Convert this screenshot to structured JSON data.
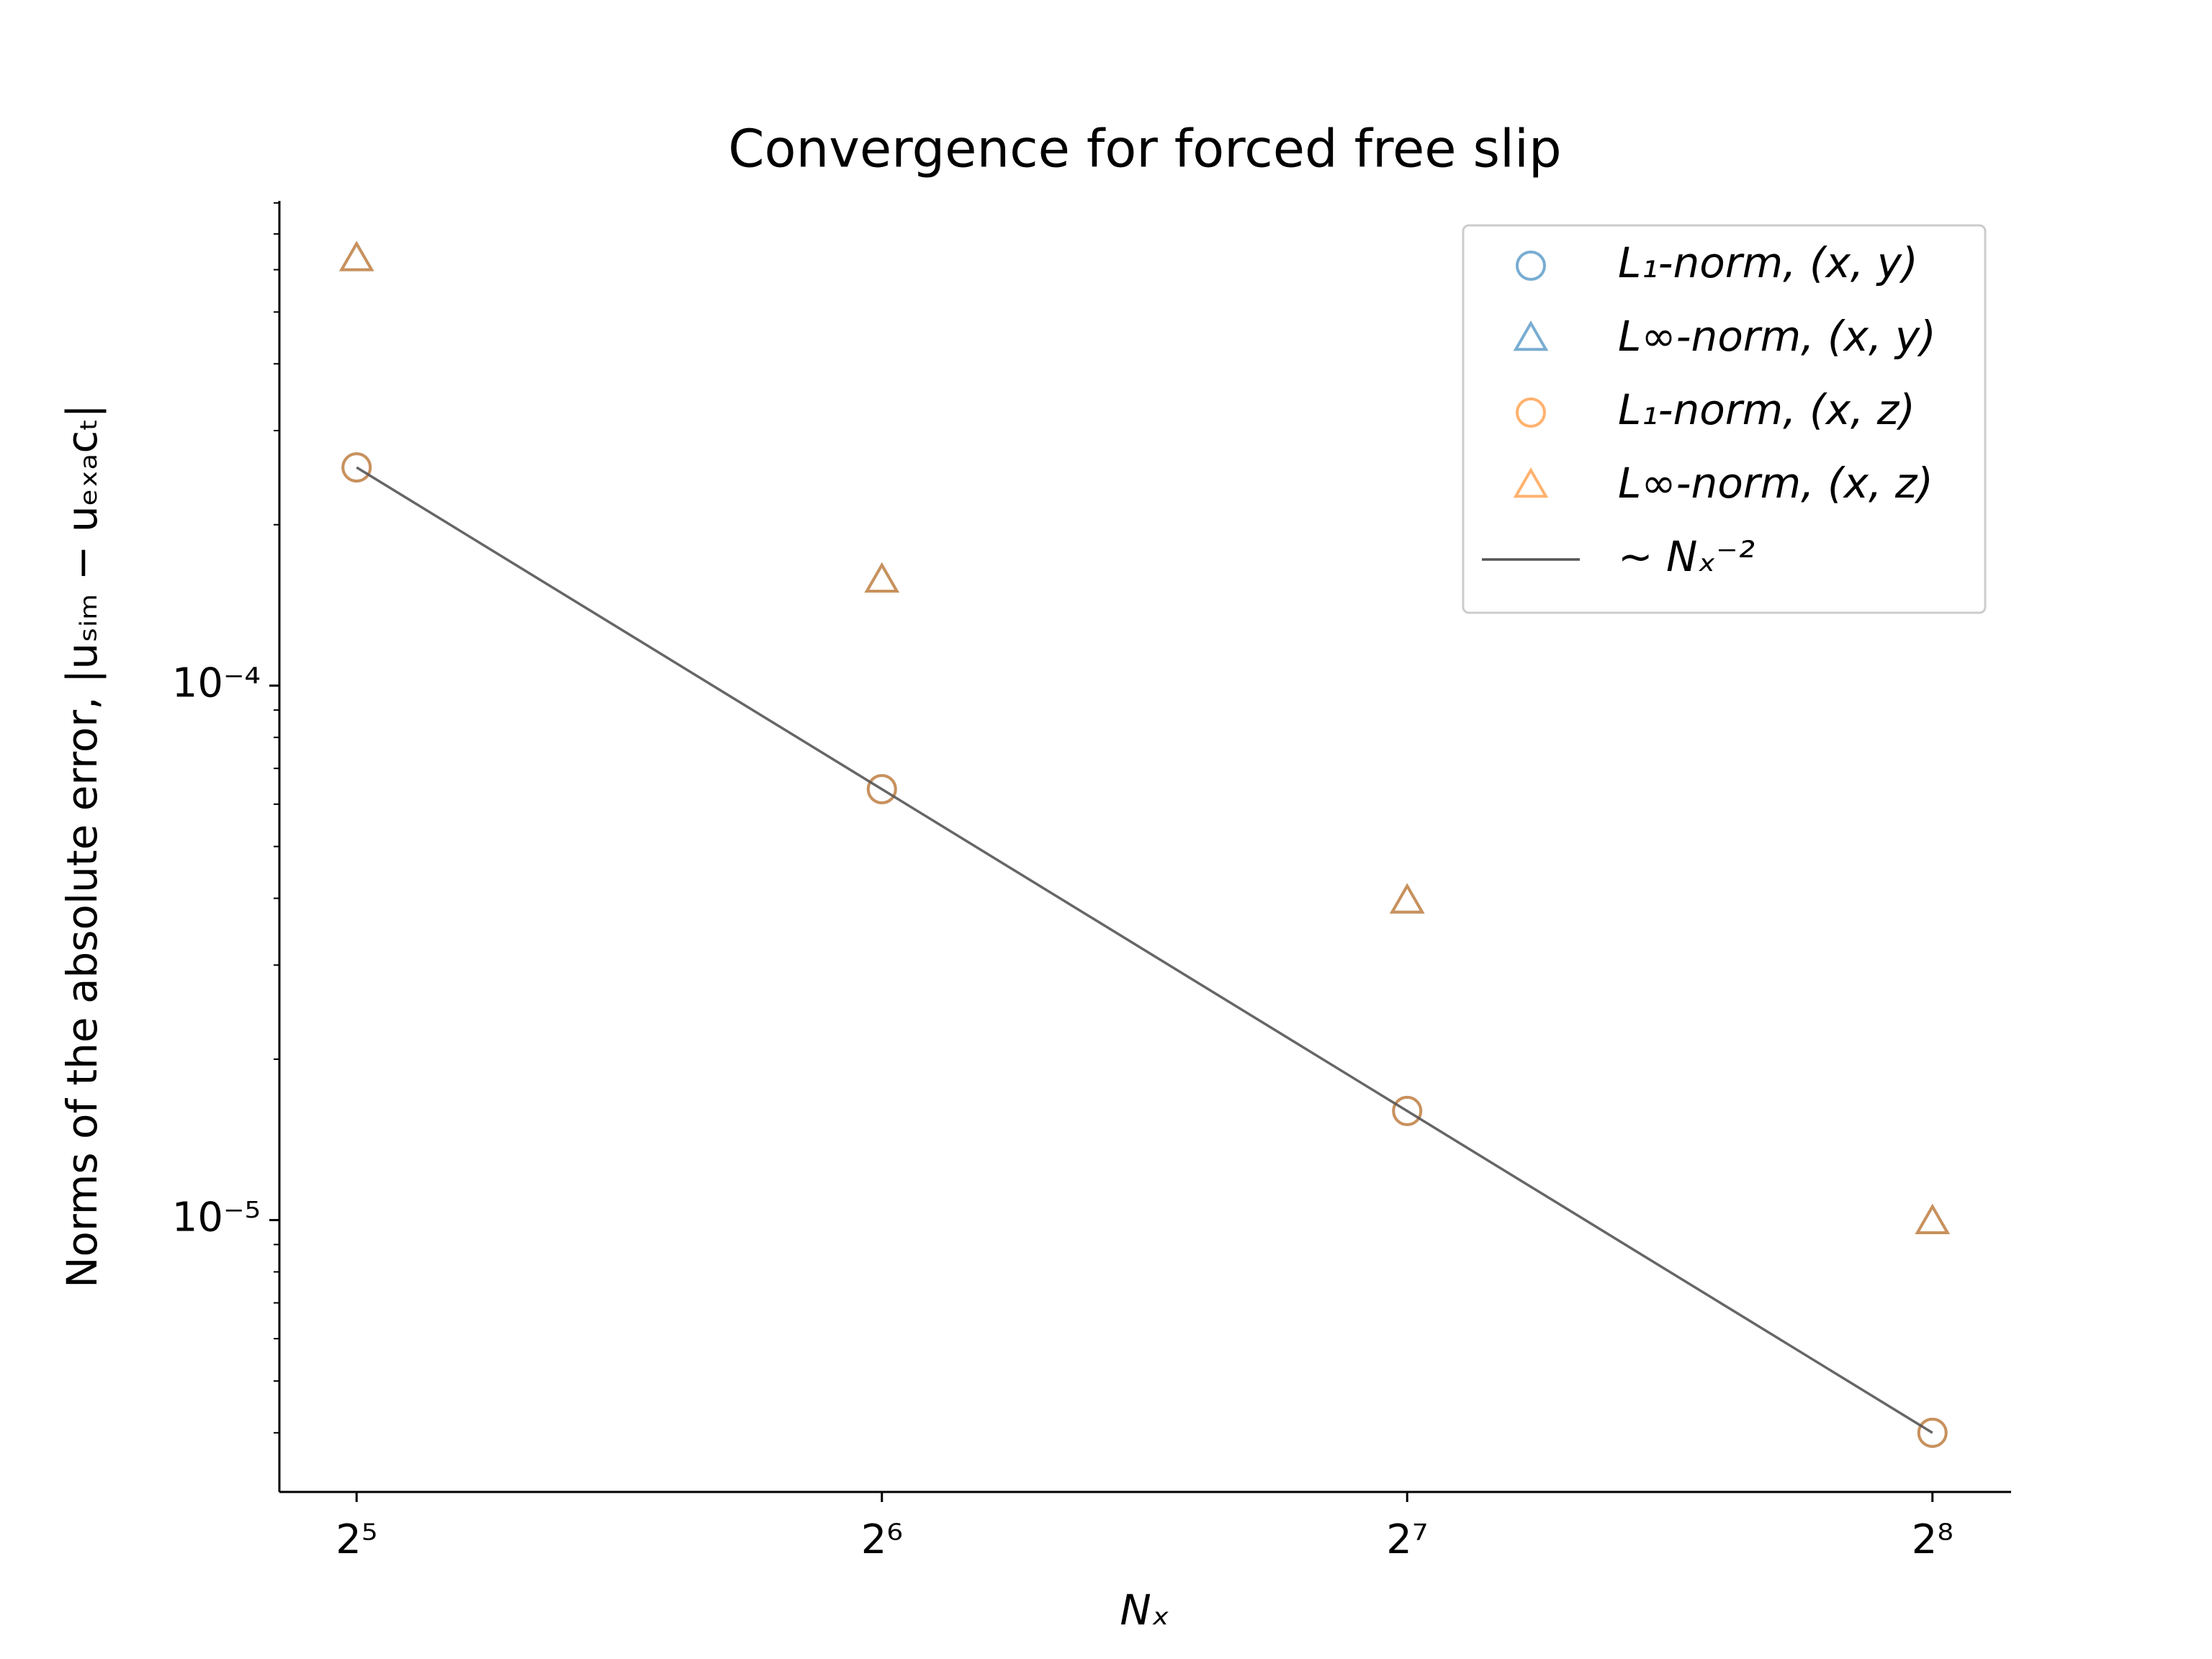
{
  "chart_data": {
    "type": "scatter",
    "title": "Convergence for forced free slip",
    "x_label": "Nₓ",
    "y_label": "Norms of the absolute error, |uₛᵢₘ − uₑₓₐcₜ|",
    "x": [
      32,
      64,
      128,
      256
    ],
    "xscale": "log",
    "yscale": "log",
    "xlim": [
      28.9,
      284
    ],
    "ylim": [
      3.1e-06,
      0.000807
    ],
    "xticks": [
      {
        "value": 32,
        "label": "2⁵"
      },
      {
        "value": 64,
        "label": "2⁶"
      },
      {
        "value": 128,
        "label": "2⁷"
      },
      {
        "value": 256,
        "label": "2⁸"
      }
    ],
    "yticks": [
      {
        "value": 1e-05,
        "label": "10⁻⁵"
      },
      {
        "value": 0.0001,
        "label": "10⁻⁴"
      }
    ],
    "yminor_ticks": [
      4e-06,
      5e-06,
      6e-06,
      7e-06,
      8e-06,
      9e-06,
      2e-05,
      3e-05,
      4e-05,
      5e-05,
      6e-05,
      7e-05,
      8e-05,
      9e-05,
      0.0002,
      0.0003,
      0.0004,
      0.0005,
      0.0006,
      0.0007,
      0.0008
    ],
    "legend": "upper right",
    "series": [
      {
        "name": "L₁-norm, (x, y)",
        "color": "#1f77b4",
        "marker": "circle",
        "values": [
          0.000256,
          6.4e-05,
          1.6e-05,
          4e-06
        ]
      },
      {
        "name": "L∞-norm, (x, y)",
        "color": "#1f77b4",
        "marker": "triangle",
        "values": [
          0.000627,
          0.000157,
          3.94e-05,
          9.9e-06
        ]
      },
      {
        "name": "L₁-norm, (x, z)",
        "color": "#ff7f0e",
        "marker": "circle",
        "values": [
          0.000256,
          6.4e-05,
          1.6e-05,
          4e-06
        ]
      },
      {
        "name": "L∞-norm, (x, z)",
        "color": "#ff7f0e",
        "marker": "triangle",
        "values": [
          0.000627,
          0.000157,
          3.94e-05,
          9.9e-06
        ]
      },
      {
        "name": "~ Nₓ⁻²",
        "color": "#555555",
        "marker": "line",
        "values": [
          0.000256,
          6.4e-05,
          1.6e-05,
          4e-06
        ]
      }
    ]
  }
}
